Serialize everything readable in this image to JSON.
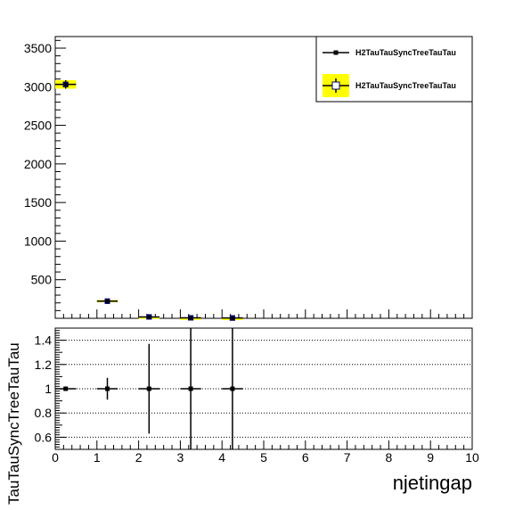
{
  "chart_data": [
    {
      "type": "scatter",
      "panel": "main",
      "xlim": [
        0,
        10
      ],
      "ylim": [
        0,
        3650
      ],
      "y_ticks": [
        500,
        1000,
        1500,
        2000,
        2500,
        3000,
        3500
      ],
      "legend_position": "top-right",
      "series": [
        {
          "name": "H2TauTauSyncTreeTauTau",
          "style": "points-with-errorbars",
          "color": "#000000",
          "x": [
            0.25,
            1.25,
            2.25,
            3.25,
            4.25
          ],
          "y": [
            3030,
            222,
            18,
            6,
            4
          ],
          "xerr": 0.25,
          "yerr": [
            55,
            15,
            4,
            2.4,
            2
          ]
        },
        {
          "name": "H2TauTauSyncTreeTauTau",
          "style": "open-square-with-yellow-band",
          "color": "#000080",
          "band_color": "#ffff00",
          "x": [
            0.25,
            1.25,
            2.25,
            3.25,
            4.25
          ],
          "y": [
            3030,
            222,
            18,
            6,
            4
          ],
          "xerr": 0.25,
          "yerr": [
            55,
            15,
            4,
            2.4,
            2
          ]
        }
      ]
    },
    {
      "type": "scatter",
      "panel": "ratio",
      "xlim": [
        0,
        10
      ],
      "ylim": [
        0.5,
        1.5
      ],
      "x_ticks": [
        0,
        1,
        2,
        3,
        4,
        5,
        6,
        7,
        8,
        9,
        10
      ],
      "y_ticks": [
        0.6,
        0.8,
        1,
        1.2,
        1.4
      ],
      "grid": "horizontal-dotted",
      "xlabel": "njetingap",
      "ylabel": "TauTauSyncTreeTauTau",
      "series": [
        {
          "style": "points-with-errorbars",
          "color": "#000000",
          "x": [
            0.25,
            1.25,
            2.25,
            3.25,
            4.25
          ],
          "y": [
            1,
            1,
            1,
            1,
            1
          ],
          "xerr": 0.25,
          "yerr": [
            0.01,
            0.09,
            0.37,
            0.6,
            0.6
          ]
        }
      ]
    }
  ]
}
